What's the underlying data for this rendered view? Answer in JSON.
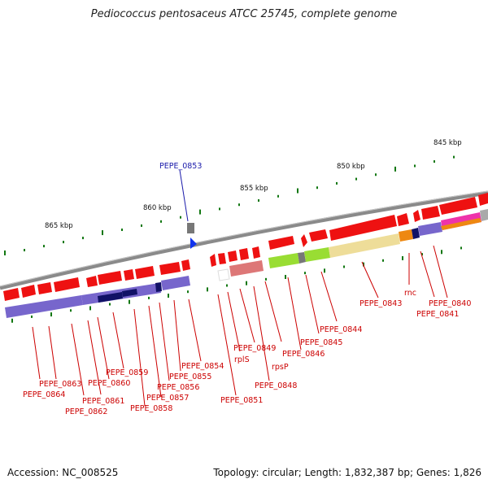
{
  "title": "Pediococcus pentosaceus ATCC 25745, complete genome",
  "footer": {
    "accession": "Accession: NC_008525",
    "summary": "Topology: circular; Length: 1,832,387 bp; Genes: 1,826"
  },
  "scale_labels": [
    "845 kbp",
    "850 kbp",
    "855 kbp",
    "860 kbp",
    "865 kbp"
  ],
  "gene_labels": [
    "PEPE_0853",
    "PEPE_0863",
    "PEPE_0864",
    "PEPE_0860",
    "PEPE_0861",
    "PEPE_0862",
    "PEPE_0859",
    "PEPE_0857",
    "PEPE_0858",
    "PEPE_0856",
    "PEPE_0855",
    "PEPE_0854",
    "rplS",
    "PEPE_0849",
    "PEPE_0851",
    "PEPE_0848",
    "rpsP",
    "PEPE_0846",
    "PEPE_0845",
    "PEPE_0844",
    "PEPE_0843",
    "rnc",
    "PEPE_0840",
    "PEPE_0841"
  ],
  "colors": {
    "gene_red": "#ee1111",
    "gene_pale_red": "#dd7777",
    "cog_purple": "#7766cc",
    "cog_dark_navy": "#111166",
    "cog_green": "#99dd33",
    "cog_khaki": "#eedd99",
    "cog_orange": "#ee8811",
    "cog_magenta": "#ee33aa",
    "highlight_blue": "#1133ee",
    "backbone": "#888888",
    "tick_green": "#117711"
  }
}
